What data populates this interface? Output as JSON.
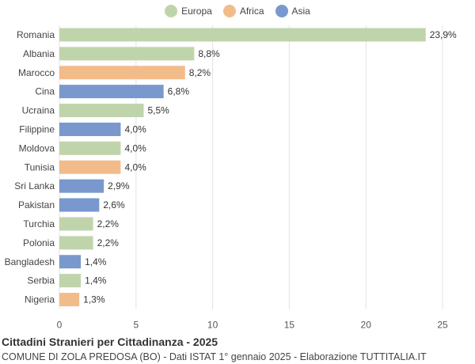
{
  "legend": [
    {
      "name": "Europa",
      "color": "#c0d4ac"
    },
    {
      "name": "Africa",
      "color": "#f2bc8a"
    },
    {
      "name": "Asia",
      "color": "#7898ce"
    }
  ],
  "title": "Cittadini Stranieri per Cittadinanza - 2025",
  "subtitle": "COMUNE DI ZOLA PREDOSA (BO) - Dati ISTAT 1° gennaio 2025 - Elaborazione TUTTITALIA.IT",
  "chart_data": {
    "type": "bar",
    "orientation": "horizontal",
    "categories": [
      "Romania",
      "Albania",
      "Marocco",
      "Cina",
      "Ucraina",
      "Filippine",
      "Moldova",
      "Tunisia",
      "Sri Lanka",
      "Pakistan",
      "Turchia",
      "Polonia",
      "Bangladesh",
      "Serbia",
      "Nigeria"
    ],
    "values": [
      23.9,
      8.8,
      8.2,
      6.8,
      5.5,
      4.0,
      4.0,
      4.0,
      2.9,
      2.6,
      2.2,
      2.2,
      1.4,
      1.4,
      1.3
    ],
    "value_labels": [
      "23,9%",
      "8,8%",
      "8,2%",
      "6,8%",
      "5,5%",
      "4,0%",
      "4,0%",
      "4,0%",
      "2,9%",
      "2,6%",
      "2,2%",
      "2,2%",
      "1,4%",
      "1,4%",
      "1,3%"
    ],
    "groups": [
      "Europa",
      "Europa",
      "Africa",
      "Asia",
      "Europa",
      "Asia",
      "Europa",
      "Africa",
      "Asia",
      "Asia",
      "Europa",
      "Europa",
      "Asia",
      "Europa",
      "Africa"
    ],
    "xlim": [
      0,
      25
    ],
    "xticks": [
      0,
      5,
      10,
      15,
      20,
      25
    ],
    "grid": true,
    "legend_position": "top-center"
  }
}
